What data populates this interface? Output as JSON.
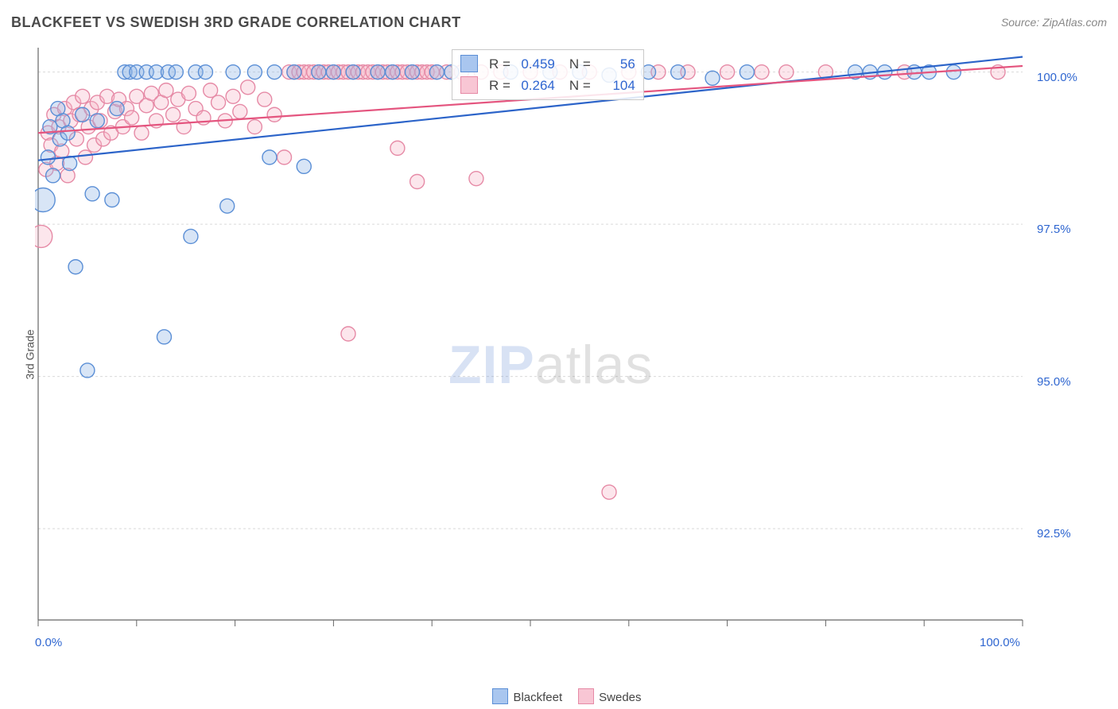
{
  "title": "BLACKFEET VS SWEDISH 3RD GRADE CORRELATION CHART",
  "source": "Source: ZipAtlas.com",
  "y_axis_label": "3rd Grade",
  "watermark": {
    "zip": "ZIP",
    "atlas": "atlas"
  },
  "chart": {
    "type": "scatter",
    "background_color": "#ffffff",
    "grid_color": "#d9d9d9",
    "grid_dash": "3,3",
    "axis_line_color": "#666666",
    "tick_color": "#666666",
    "tick_label_color": "#2f66d0",
    "tick_label_fontsize": 15,
    "xlim": [
      0,
      100
    ],
    "ylim": [
      91.0,
      100.4
    ],
    "x_ticks_major": [
      0,
      10,
      20,
      30,
      40,
      50,
      60,
      70,
      80,
      90,
      100
    ],
    "x_tick_labels": {
      "0": "0.0%",
      "100": "100.0%"
    },
    "y_gridlines": [
      92.5,
      95.0,
      97.5,
      100.0
    ],
    "y_tick_labels": {
      "92.5": "92.5%",
      "95.0": "95.0%",
      "97.5": "97.5%",
      "100.0": "100.0%"
    },
    "marker_radius_default": 9,
    "marker_stroke_width": 1.4,
    "marker_fill_opacity": 0.35,
    "trend_line_width": 2.2,
    "series": [
      {
        "name": "Blackfeet",
        "color_stroke": "#5b8fd6",
        "color_fill": "#8fb5e6",
        "trend_color": "#2c64c9",
        "R": "0.459",
        "N": "56",
        "trend_line": {
          "x1": 0,
          "y1": 98.55,
          "x2": 100,
          "y2": 100.25
        },
        "points": [
          {
            "x": 0.5,
            "y": 97.9,
            "r": 15
          },
          {
            "x": 1.0,
            "y": 98.6
          },
          {
            "x": 1.2,
            "y": 99.1
          },
          {
            "x": 1.5,
            "y": 98.3
          },
          {
            "x": 2.0,
            "y": 99.4
          },
          {
            "x": 2.2,
            "y": 98.9
          },
          {
            "x": 2.5,
            "y": 99.2
          },
          {
            "x": 3.0,
            "y": 99.0
          },
          {
            "x": 3.2,
            "y": 98.5
          },
          {
            "x": 3.8,
            "y": 96.8
          },
          {
            "x": 4.5,
            "y": 99.3
          },
          {
            "x": 5.0,
            "y": 95.1
          },
          {
            "x": 5.5,
            "y": 98.0
          },
          {
            "x": 6.0,
            "y": 99.2
          },
          {
            "x": 7.5,
            "y": 97.9
          },
          {
            "x": 8.0,
            "y": 99.4
          },
          {
            "x": 8.8,
            "y": 100.0
          },
          {
            "x": 9.3,
            "y": 100.0
          },
          {
            "x": 10.0,
            "y": 100.0
          },
          {
            "x": 11.0,
            "y": 100.0
          },
          {
            "x": 12.0,
            "y": 100.0
          },
          {
            "x": 12.8,
            "y": 95.65
          },
          {
            "x": 13.2,
            "y": 100.0
          },
          {
            "x": 14.0,
            "y": 100.0
          },
          {
            "x": 15.5,
            "y": 97.3
          },
          {
            "x": 16.0,
            "y": 100.0
          },
          {
            "x": 17.0,
            "y": 100.0
          },
          {
            "x": 19.2,
            "y": 97.8
          },
          {
            "x": 19.8,
            "y": 100.0
          },
          {
            "x": 22.0,
            "y": 100.0
          },
          {
            "x": 23.5,
            "y": 98.6
          },
          {
            "x": 24.0,
            "y": 100.0
          },
          {
            "x": 26.0,
            "y": 100.0
          },
          {
            "x": 27.0,
            "y": 98.45
          },
          {
            "x": 28.5,
            "y": 100.0
          },
          {
            "x": 30.0,
            "y": 100.0
          },
          {
            "x": 32.0,
            "y": 100.0
          },
          {
            "x": 34.5,
            "y": 100.0
          },
          {
            "x": 36.0,
            "y": 100.0
          },
          {
            "x": 38.0,
            "y": 100.0
          },
          {
            "x": 40.5,
            "y": 100.0
          },
          {
            "x": 42.0,
            "y": 100.0
          },
          {
            "x": 48.0,
            "y": 100.0
          },
          {
            "x": 52.0,
            "y": 100.0
          },
          {
            "x": 55.0,
            "y": 100.0
          },
          {
            "x": 58.0,
            "y": 99.95
          },
          {
            "x": 62.0,
            "y": 100.0
          },
          {
            "x": 65.0,
            "y": 100.0
          },
          {
            "x": 68.5,
            "y": 99.9
          },
          {
            "x": 72.0,
            "y": 100.0
          },
          {
            "x": 83.0,
            "y": 100.0
          },
          {
            "x": 84.5,
            "y": 100.0
          },
          {
            "x": 86.0,
            "y": 100.0
          },
          {
            "x": 89.0,
            "y": 100.0
          },
          {
            "x": 90.5,
            "y": 100.0
          },
          {
            "x": 93.0,
            "y": 100.0
          }
        ]
      },
      {
        "name": "Swedes",
        "color_stroke": "#e68aa6",
        "color_fill": "#f5b6c8",
        "trend_color": "#e4557f",
        "R": "0.264",
        "N": "104",
        "trend_line": {
          "x1": 0,
          "y1": 99.0,
          "x2": 100,
          "y2": 100.1
        },
        "points": [
          {
            "x": 0.3,
            "y": 97.3,
            "r": 14
          },
          {
            "x": 0.8,
            "y": 98.4
          },
          {
            "x": 1.0,
            "y": 99.0
          },
          {
            "x": 1.3,
            "y": 98.8
          },
          {
            "x": 1.6,
            "y": 99.3
          },
          {
            "x": 1.9,
            "y": 98.5
          },
          {
            "x": 2.1,
            "y": 99.1
          },
          {
            "x": 2.4,
            "y": 98.7
          },
          {
            "x": 2.7,
            "y": 99.4
          },
          {
            "x": 3.0,
            "y": 98.3
          },
          {
            "x": 3.3,
            "y": 99.2
          },
          {
            "x": 3.6,
            "y": 99.5
          },
          {
            "x": 3.9,
            "y": 98.9
          },
          {
            "x": 4.2,
            "y": 99.3
          },
          {
            "x": 4.5,
            "y": 99.6
          },
          {
            "x": 4.8,
            "y": 98.6
          },
          {
            "x": 5.1,
            "y": 99.1
          },
          {
            "x": 5.4,
            "y": 99.4
          },
          {
            "x": 5.7,
            "y": 98.8
          },
          {
            "x": 6.0,
            "y": 99.5
          },
          {
            "x": 6.3,
            "y": 99.2
          },
          {
            "x": 6.6,
            "y": 98.9
          },
          {
            "x": 7.0,
            "y": 99.6
          },
          {
            "x": 7.4,
            "y": 99.0
          },
          {
            "x": 7.8,
            "y": 99.35
          },
          {
            "x": 8.2,
            "y": 99.55
          },
          {
            "x": 8.6,
            "y": 99.1
          },
          {
            "x": 9.0,
            "y": 99.4
          },
          {
            "x": 9.5,
            "y": 99.25
          },
          {
            "x": 10.0,
            "y": 99.6
          },
          {
            "x": 10.5,
            "y": 99.0
          },
          {
            "x": 11.0,
            "y": 99.45
          },
          {
            "x": 11.5,
            "y": 99.65
          },
          {
            "x": 12.0,
            "y": 99.2
          },
          {
            "x": 12.5,
            "y": 99.5
          },
          {
            "x": 13.0,
            "y": 99.7
          },
          {
            "x": 13.7,
            "y": 99.3
          },
          {
            "x": 14.2,
            "y": 99.55
          },
          {
            "x": 14.8,
            "y": 99.1
          },
          {
            "x": 15.3,
            "y": 99.65
          },
          {
            "x": 16.0,
            "y": 99.4
          },
          {
            "x": 16.8,
            "y": 99.25
          },
          {
            "x": 17.5,
            "y": 99.7
          },
          {
            "x": 18.3,
            "y": 99.5
          },
          {
            "x": 19.0,
            "y": 99.2
          },
          {
            "x": 19.8,
            "y": 99.6
          },
          {
            "x": 20.5,
            "y": 99.35
          },
          {
            "x": 21.3,
            "y": 99.75
          },
          {
            "x": 22.0,
            "y": 99.1
          },
          {
            "x": 23.0,
            "y": 99.55
          },
          {
            "x": 24.0,
            "y": 99.3
          },
          {
            "x": 25.0,
            "y": 98.6
          },
          {
            "x": 25.5,
            "y": 100.0
          },
          {
            "x": 26.0,
            "y": 100.0
          },
          {
            "x": 26.5,
            "y": 100.0
          },
          {
            "x": 27.0,
            "y": 100.0
          },
          {
            "x": 27.5,
            "y": 100.0
          },
          {
            "x": 28.0,
            "y": 100.0
          },
          {
            "x": 28.5,
            "y": 100.0
          },
          {
            "x": 29.0,
            "y": 100.0
          },
          {
            "x": 29.5,
            "y": 100.0
          },
          {
            "x": 30.0,
            "y": 100.0
          },
          {
            "x": 30.5,
            "y": 100.0
          },
          {
            "x": 31.0,
            "y": 100.0
          },
          {
            "x": 31.5,
            "y": 100.0
          },
          {
            "x": 32.0,
            "y": 100.0
          },
          {
            "x": 32.5,
            "y": 100.0
          },
          {
            "x": 33.0,
            "y": 100.0
          },
          {
            "x": 33.5,
            "y": 100.0
          },
          {
            "x": 34.0,
            "y": 100.0
          },
          {
            "x": 34.5,
            "y": 100.0
          },
          {
            "x": 35.0,
            "y": 100.0
          },
          {
            "x": 35.5,
            "y": 100.0
          },
          {
            "x": 36.0,
            "y": 100.0
          },
          {
            "x": 36.5,
            "y": 100.0
          },
          {
            "x": 37.0,
            "y": 100.0
          },
          {
            "x": 37.5,
            "y": 100.0
          },
          {
            "x": 38.0,
            "y": 100.0
          },
          {
            "x": 38.5,
            "y": 100.0
          },
          {
            "x": 39.0,
            "y": 100.0
          },
          {
            "x": 31.5,
            "y": 95.7
          },
          {
            "x": 36.5,
            "y": 98.75
          },
          {
            "x": 38.5,
            "y": 98.2
          },
          {
            "x": 44.5,
            "y": 98.25
          },
          {
            "x": 39.5,
            "y": 100.0
          },
          {
            "x": 40.0,
            "y": 100.0
          },
          {
            "x": 40.5,
            "y": 100.0
          },
          {
            "x": 41.5,
            "y": 100.0
          },
          {
            "x": 43.0,
            "y": 100.0
          },
          {
            "x": 45.0,
            "y": 100.0
          },
          {
            "x": 47.0,
            "y": 100.0
          },
          {
            "x": 50.0,
            "y": 100.0
          },
          {
            "x": 53.0,
            "y": 100.0
          },
          {
            "x": 56.0,
            "y": 100.0
          },
          {
            "x": 58.0,
            "y": 93.1
          },
          {
            "x": 60.0,
            "y": 100.0
          },
          {
            "x": 63.0,
            "y": 100.0
          },
          {
            "x": 66.0,
            "y": 100.0
          },
          {
            "x": 70.0,
            "y": 100.0
          },
          {
            "x": 73.5,
            "y": 100.0
          },
          {
            "x": 76.0,
            "y": 100.0
          },
          {
            "x": 80.0,
            "y": 100.0
          },
          {
            "x": 97.5,
            "y": 100.0
          },
          {
            "x": 88.0,
            "y": 100.0
          }
        ]
      }
    ]
  },
  "legend": {
    "items": [
      {
        "label": "Blackfeet",
        "fill": "#a9c6ef",
        "stroke": "#5b8fd6"
      },
      {
        "label": "Swedes",
        "fill": "#f8c6d4",
        "stroke": "#e68aa6"
      }
    ]
  },
  "stats_box": {
    "rows": [
      {
        "fill": "#a9c6ef",
        "stroke": "#5b8fd6",
        "R_label": "R =",
        "R": "0.459",
        "N_label": "N =",
        "N": "56"
      },
      {
        "fill": "#f8c6d4",
        "stroke": "#e68aa6",
        "R_label": "R =",
        "R": "0.264",
        "N_label": "N =",
        "N": "104"
      }
    ]
  }
}
